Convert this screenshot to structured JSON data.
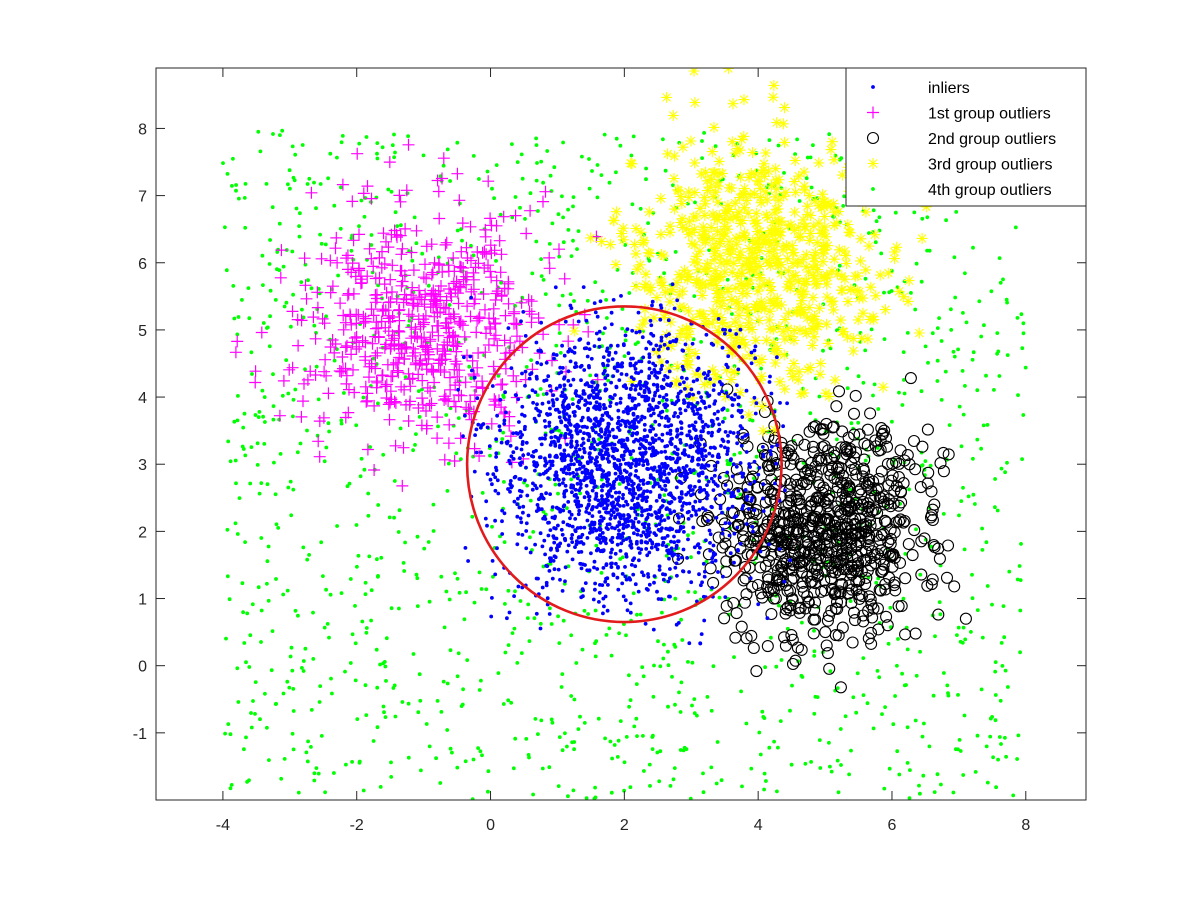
{
  "chart_data": {
    "type": "scatter",
    "title": "",
    "xlabel": "",
    "ylabel": "",
    "xlim": [
      -5,
      8.9
    ],
    "ylim": [
      -2,
      8.9
    ],
    "x_ticks": [
      -4,
      -2,
      0,
      2,
      4,
      6,
      8
    ],
    "y_ticks": [
      -1,
      0,
      1,
      2,
      3,
      4,
      5,
      6,
      7,
      8
    ],
    "x_tick_labels": [
      "-4",
      "-2",
      "0",
      "2",
      "4",
      "6",
      "8"
    ],
    "y_tick_labels": [
      "-1",
      "0",
      "1",
      "2",
      "3",
      "4",
      "5",
      "6",
      "7",
      "8"
    ],
    "grid": false,
    "legend_position": "top-right",
    "series": [
      {
        "name": "inliers",
        "marker": "dot",
        "color": "#0000ff",
        "center": [
          2,
          3
        ],
        "spread": [
          1.0,
          1.0
        ],
        "count": 2200,
        "x_range": [
          -0.5,
          4.5
        ],
        "y_range": [
          0.3,
          5.7
        ]
      },
      {
        "name": "1st group outliers",
        "marker": "plus",
        "color": "#ff00ff",
        "center": [
          -1,
          5
        ],
        "spread": [
          0.9,
          0.9
        ],
        "count": 600,
        "x_range": [
          -4.0,
          1.8
        ],
        "y_range": [
          2.6,
          8.6
        ]
      },
      {
        "name": "2nd group outliers",
        "marker": "circle",
        "color": "#000000",
        "center": [
          5,
          2
        ],
        "spread": [
          0.8,
          0.8
        ],
        "count": 800,
        "x_range": [
          2.8,
          7.4
        ],
        "y_range": [
          -0.4,
          4.6
        ]
      },
      {
        "name": "3rd group outliers",
        "marker": "star",
        "color": "#ffff00",
        "center": [
          4,
          6
        ],
        "spread": [
          0.9,
          0.9
        ],
        "count": 700,
        "x_range": [
          1.2,
          6.6
        ],
        "y_range": [
          3.4,
          8.9
        ]
      },
      {
        "name": "4th group outliers",
        "marker": "dot",
        "color": "#00ff00",
        "distribution": "uniform",
        "count": 1500,
        "x_range": [
          -4,
          8
        ],
        "y_range": [
          -2,
          8
        ]
      }
    ],
    "circle": {
      "center": [
        2,
        3
      ],
      "radius": 2.35,
      "color": "#e31a1c"
    }
  }
}
